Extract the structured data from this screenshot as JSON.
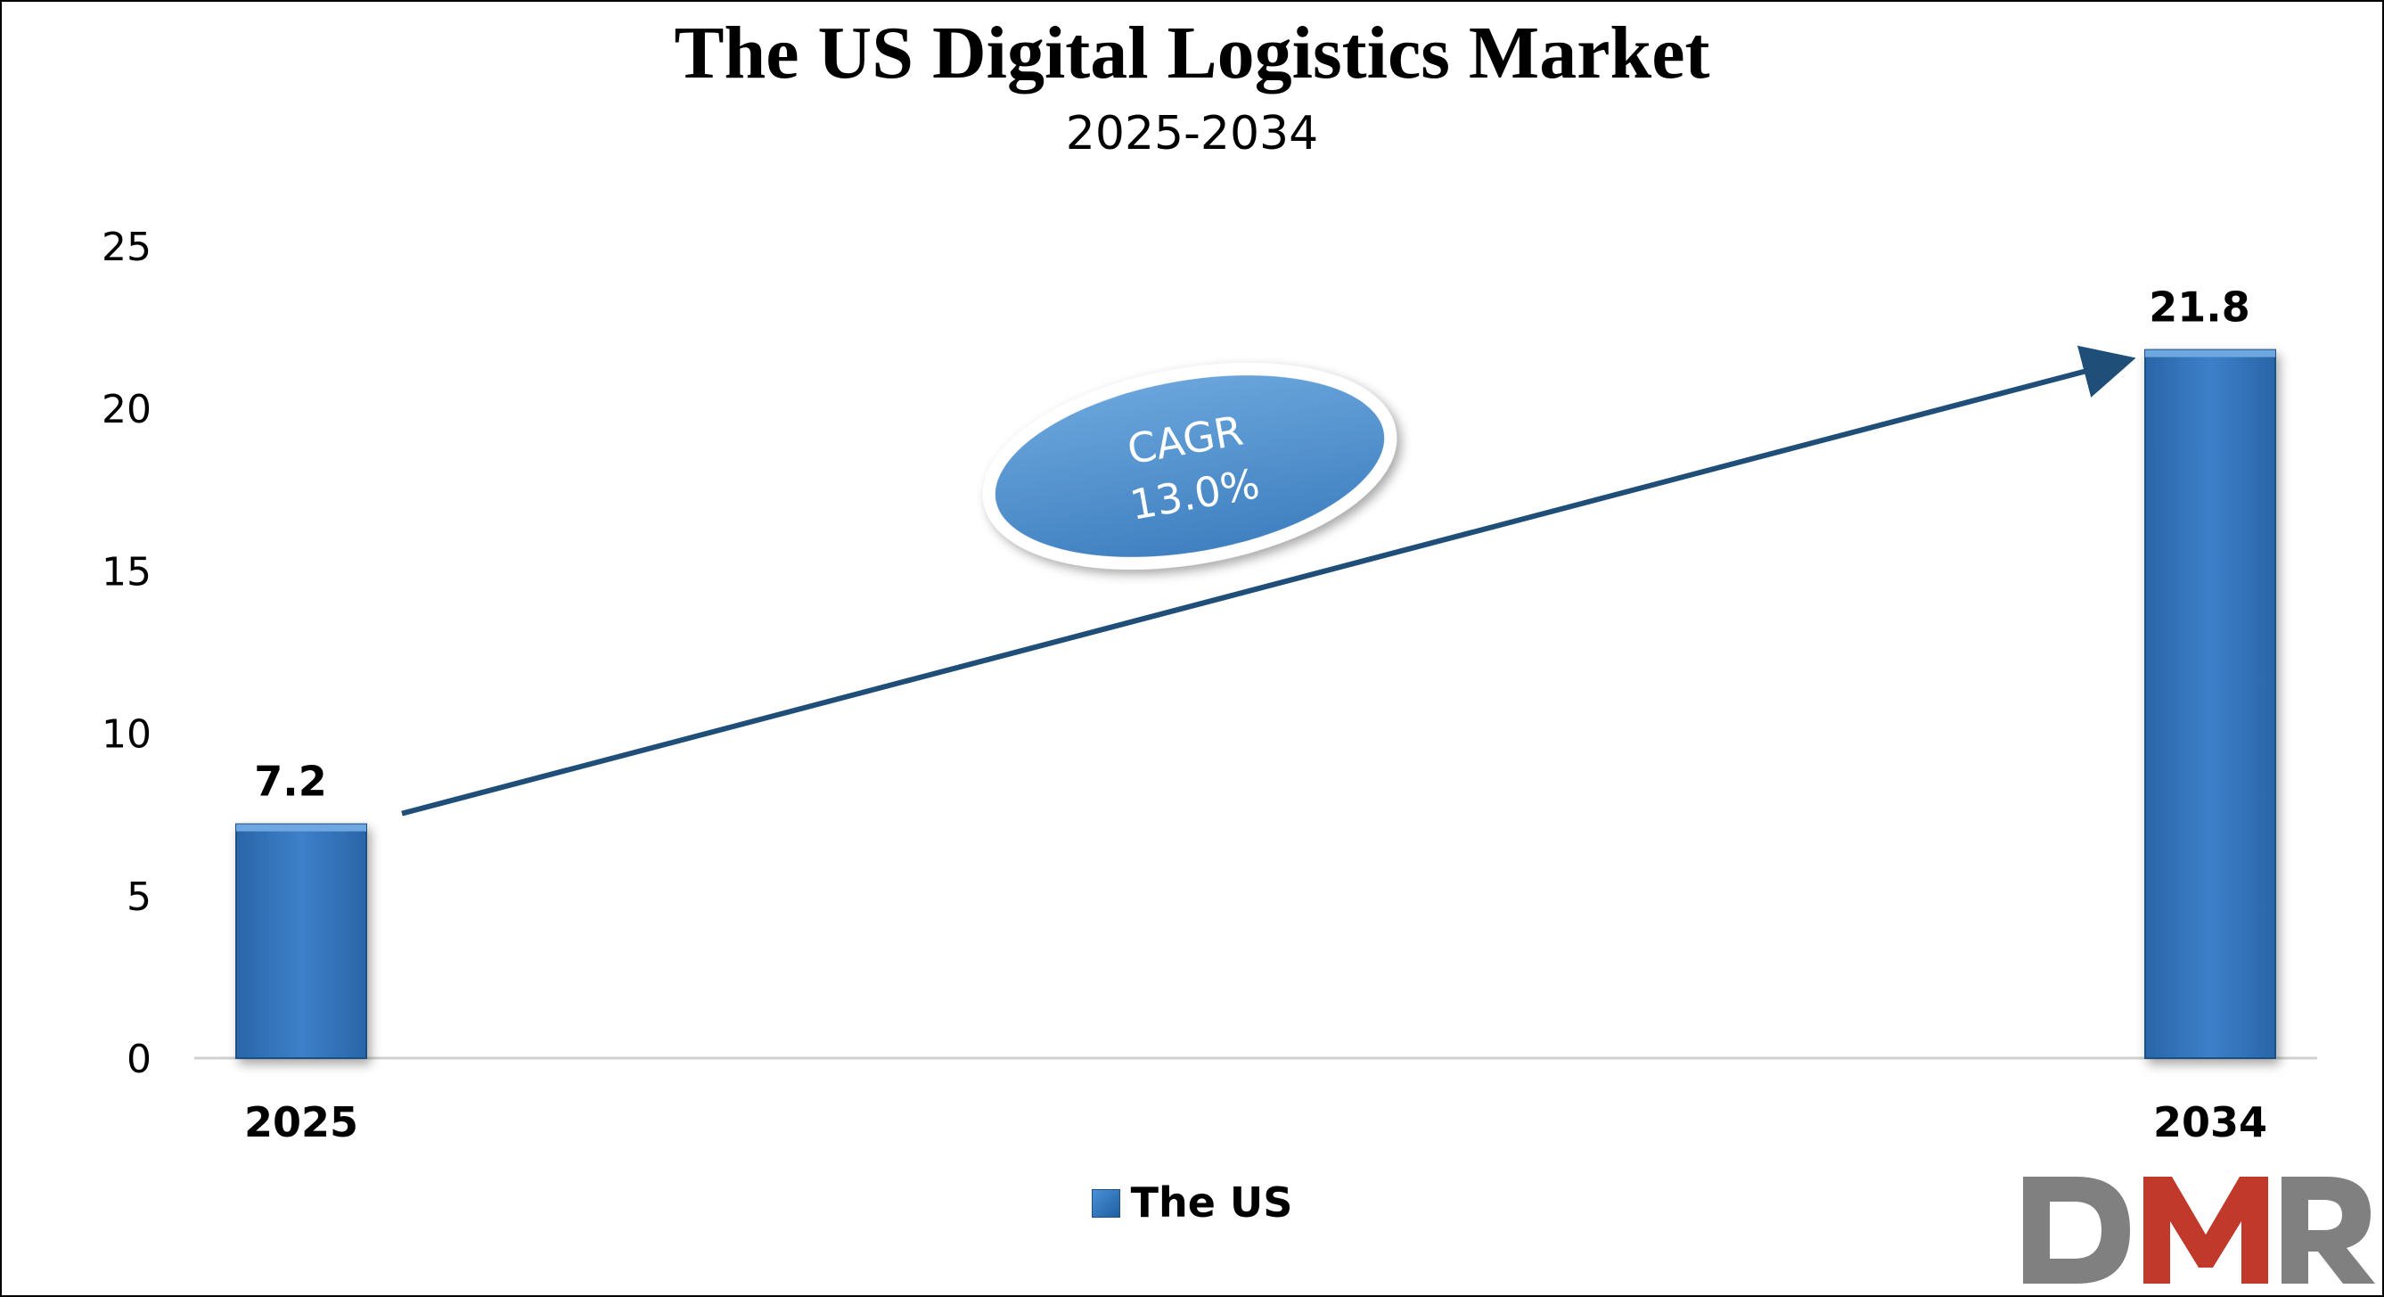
{
  "chart_data": {
    "type": "bar",
    "title": "The US Digital Logistics Market",
    "subtitle": "2025-2034",
    "categories": [
      "2025",
      "2034"
    ],
    "series": [
      {
        "name": "The US",
        "values": [
          7.2,
          21.8
        ],
        "data_labels": [
          "7.2",
          "21.8"
        ]
      }
    ],
    "ylim": [
      0,
      25
    ],
    "yticks": [
      0,
      5,
      10,
      15,
      20,
      25
    ],
    "xlabel": "",
    "ylabel": "",
    "grid": false,
    "legend": "bottom-center",
    "annotation": {
      "label": "CAGR",
      "value": "13.0%"
    },
    "colors": {
      "bar": "#3b7cc4",
      "bar_edge": "#1c4f82",
      "arrow": "#1f4e79",
      "ellipse_fill": "#5b9bd5",
      "ellipse_text": "#ffffff"
    }
  },
  "logo": {
    "text": "DMR",
    "colors": {
      "D": "#808080",
      "M": "#c0392b",
      "R": "#808080"
    }
  }
}
